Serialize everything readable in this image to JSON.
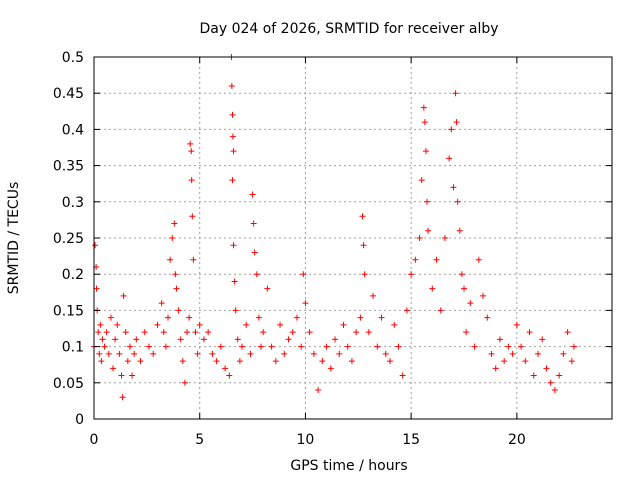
{
  "chart_data": {
    "type": "scatter",
    "title": "Day 024 of 2026, SRMTID for receiver alby",
    "xlabel": "GPS time / hours",
    "ylabel": "SRMTID / TECUs",
    "xlim": [
      0,
      24.5
    ],
    "ylim": [
      0,
      0.5
    ],
    "x_ticks": [
      0,
      5,
      10,
      15,
      20
    ],
    "x_tick_labels": [
      "0",
      "5",
      "10",
      "15",
      "20"
    ],
    "y_ticks": [
      0,
      0.05,
      0.1,
      0.15,
      0.2,
      0.25,
      0.3,
      0.35,
      0.4,
      0.45,
      0.5
    ],
    "y_tick_labels": [
      "0",
      "0.05",
      "0.1",
      "0.15",
      "0.2",
      "0.25",
      "0.3",
      "0.35",
      "0.4",
      "0.45",
      "0.5"
    ],
    "grid": true,
    "marker": "plus",
    "series_color": "#ff0000",
    "series": [
      {
        "name": "SRMTID",
        "points": [
          [
            0.0,
            0.1
          ],
          [
            0.05,
            0.24
          ],
          [
            0.1,
            0.21
          ],
          [
            0.12,
            0.18
          ],
          [
            0.15,
            0.15
          ],
          [
            0.2,
            0.12
          ],
          [
            0.25,
            0.09
          ],
          [
            0.3,
            0.13
          ],
          [
            0.35,
            0.08
          ],
          [
            0.4,
            0.11
          ],
          [
            0.5,
            0.1
          ],
          [
            0.6,
            0.12
          ],
          [
            0.7,
            0.09
          ],
          [
            0.8,
            0.14
          ],
          [
            0.9,
            0.07
          ],
          [
            1.0,
            0.11
          ],
          [
            1.1,
            0.13
          ],
          [
            1.2,
            0.09
          ],
          [
            1.3,
            0.06
          ],
          [
            1.35,
            0.03
          ],
          [
            1.4,
            0.17
          ],
          [
            1.5,
            0.12
          ],
          [
            1.6,
            0.08
          ],
          [
            1.7,
            0.1
          ],
          [
            1.8,
            0.06
          ],
          [
            1.9,
            0.09
          ],
          [
            2.0,
            0.11
          ],
          [
            2.2,
            0.08
          ],
          [
            2.4,
            0.12
          ],
          [
            2.6,
            0.1
          ],
          [
            2.8,
            0.09
          ],
          [
            3.0,
            0.13
          ],
          [
            3.2,
            0.16
          ],
          [
            3.3,
            0.12
          ],
          [
            3.4,
            0.1
          ],
          [
            3.5,
            0.14
          ],
          [
            3.6,
            0.22
          ],
          [
            3.7,
            0.25
          ],
          [
            3.8,
            0.27
          ],
          [
            3.85,
            0.2
          ],
          [
            3.9,
            0.18
          ],
          [
            4.0,
            0.15
          ],
          [
            4.1,
            0.11
          ],
          [
            4.2,
            0.08
          ],
          [
            4.3,
            0.05
          ],
          [
            4.4,
            0.12
          ],
          [
            4.5,
            0.14
          ],
          [
            4.55,
            0.38
          ],
          [
            4.6,
            0.37
          ],
          [
            4.62,
            0.33
          ],
          [
            4.65,
            0.28
          ],
          [
            4.7,
            0.22
          ],
          [
            4.8,
            0.12
          ],
          [
            4.9,
            0.09
          ],
          [
            5.0,
            0.13
          ],
          [
            5.2,
            0.11
          ],
          [
            5.4,
            0.12
          ],
          [
            5.6,
            0.09
          ],
          [
            5.8,
            0.08
          ],
          [
            6.0,
            0.1
          ],
          [
            6.2,
            0.07
          ],
          [
            6.4,
            0.06
          ],
          [
            6.5,
            0.5
          ],
          [
            6.52,
            0.46
          ],
          [
            6.55,
            0.42
          ],
          [
            6.57,
            0.39
          ],
          [
            6.6,
            0.37
          ],
          [
            6.55,
            0.33
          ],
          [
            6.6,
            0.24
          ],
          [
            6.65,
            0.19
          ],
          [
            6.7,
            0.15
          ],
          [
            6.8,
            0.11
          ],
          [
            6.9,
            0.08
          ],
          [
            7.0,
            0.1
          ],
          [
            7.2,
            0.13
          ],
          [
            7.4,
            0.09
          ],
          [
            7.5,
            0.31
          ],
          [
            7.55,
            0.27
          ],
          [
            7.6,
            0.23
          ],
          [
            7.7,
            0.2
          ],
          [
            7.8,
            0.14
          ],
          [
            7.9,
            0.1
          ],
          [
            8.0,
            0.12
          ],
          [
            8.2,
            0.18
          ],
          [
            8.4,
            0.1
          ],
          [
            8.6,
            0.08
          ],
          [
            8.8,
            0.13
          ],
          [
            9.0,
            0.09
          ],
          [
            9.2,
            0.11
          ],
          [
            9.4,
            0.12
          ],
          [
            9.6,
            0.14
          ],
          [
            9.8,
            0.1
          ],
          [
            9.9,
            0.2
          ],
          [
            10.0,
            0.16
          ],
          [
            10.2,
            0.12
          ],
          [
            10.4,
            0.09
          ],
          [
            10.6,
            0.04
          ],
          [
            10.8,
            0.08
          ],
          [
            11.0,
            0.1
          ],
          [
            11.2,
            0.07
          ],
          [
            11.4,
            0.11
          ],
          [
            11.6,
            0.09
          ],
          [
            11.8,
            0.13
          ],
          [
            12.0,
            0.1
          ],
          [
            12.2,
            0.08
          ],
          [
            12.4,
            0.12
          ],
          [
            12.6,
            0.14
          ],
          [
            12.7,
            0.28
          ],
          [
            12.75,
            0.24
          ],
          [
            12.8,
            0.2
          ],
          [
            13.0,
            0.12
          ],
          [
            13.2,
            0.17
          ],
          [
            13.4,
            0.1
          ],
          [
            13.6,
            0.14
          ],
          [
            13.8,
            0.09
          ],
          [
            14.0,
            0.08
          ],
          [
            14.2,
            0.13
          ],
          [
            14.4,
            0.1
          ],
          [
            14.6,
            0.06
          ],
          [
            14.8,
            0.15
          ],
          [
            15.0,
            0.2
          ],
          [
            15.2,
            0.22
          ],
          [
            15.4,
            0.25
          ],
          [
            15.5,
            0.33
          ],
          [
            15.6,
            0.43
          ],
          [
            15.65,
            0.41
          ],
          [
            15.7,
            0.37
          ],
          [
            15.75,
            0.3
          ],
          [
            15.8,
            0.26
          ],
          [
            16.0,
            0.18
          ],
          [
            16.2,
            0.22
          ],
          [
            16.4,
            0.15
          ],
          [
            16.6,
            0.25
          ],
          [
            16.8,
            0.36
          ],
          [
            16.9,
            0.4
          ],
          [
            17.0,
            0.32
          ],
          [
            17.1,
            0.45
          ],
          [
            17.15,
            0.41
          ],
          [
            17.2,
            0.3
          ],
          [
            17.3,
            0.26
          ],
          [
            17.4,
            0.2
          ],
          [
            17.5,
            0.18
          ],
          [
            17.6,
            0.12
          ],
          [
            17.8,
            0.16
          ],
          [
            18.0,
            0.1
          ],
          [
            18.2,
            0.22
          ],
          [
            18.4,
            0.17
          ],
          [
            18.6,
            0.14
          ],
          [
            18.8,
            0.09
          ],
          [
            19.0,
            0.07
          ],
          [
            19.2,
            0.11
          ],
          [
            19.4,
            0.08
          ],
          [
            19.6,
            0.1
          ],
          [
            19.8,
            0.09
          ],
          [
            20.0,
            0.13
          ],
          [
            20.2,
            0.1
          ],
          [
            20.4,
            0.08
          ],
          [
            20.6,
            0.12
          ],
          [
            20.8,
            0.06
          ],
          [
            21.0,
            0.09
          ],
          [
            21.2,
            0.11
          ],
          [
            21.4,
            0.07
          ],
          [
            21.6,
            0.05
          ],
          [
            21.8,
            0.04
          ],
          [
            22.0,
            0.06
          ],
          [
            22.2,
            0.09
          ],
          [
            22.4,
            0.12
          ],
          [
            22.6,
            0.08
          ],
          [
            22.7,
            0.1
          ]
        ]
      }
    ]
  }
}
